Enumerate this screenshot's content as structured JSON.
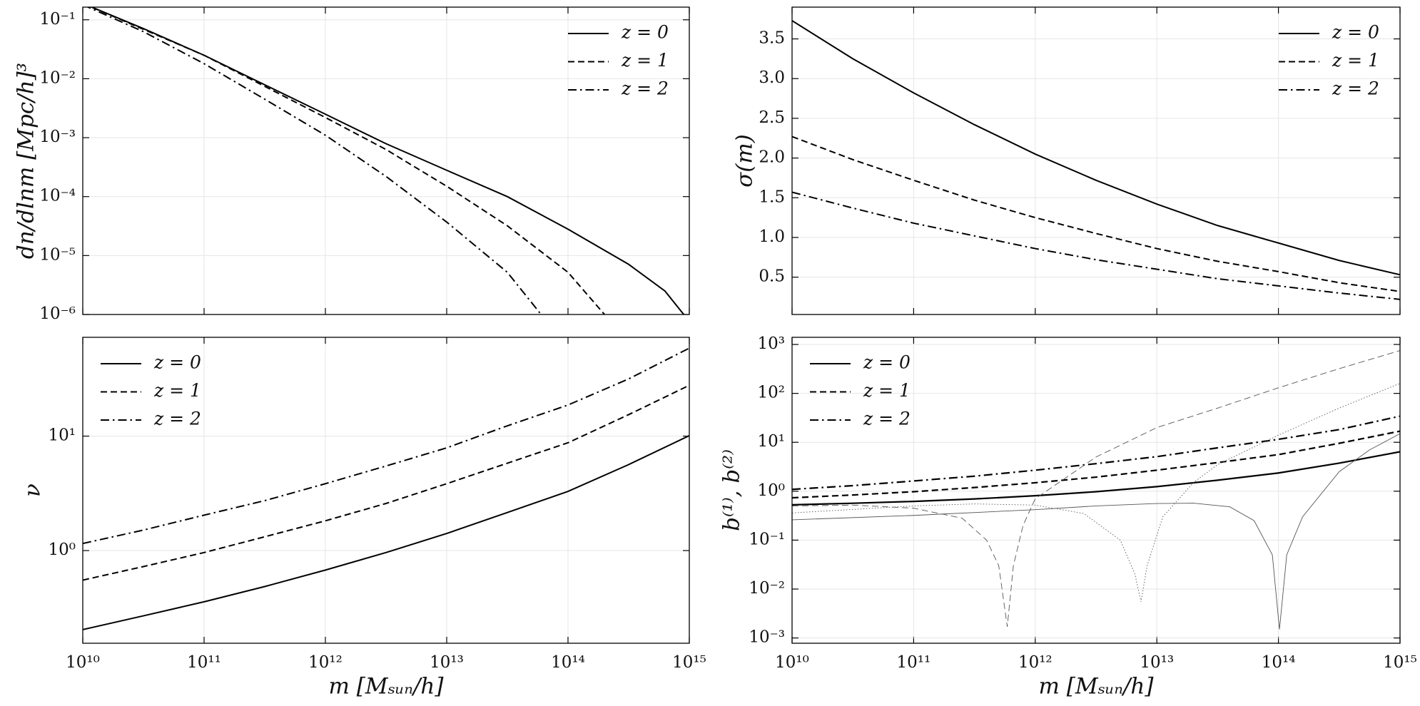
{
  "chart_data": [
    {
      "type": "line",
      "ylabel": "dn/dlnm   [Mpc/h]³",
      "xlog": true,
      "ylog": true,
      "xlim": [
        10000000000.0,
        1000000000000000.0
      ],
      "ylim": [
        1e-06,
        0.164
      ],
      "xticks": [
        10000000000.0,
        100000000000.0,
        1000000000000.0,
        10000000000000.0,
        100000000000000.0,
        1000000000000000.0
      ],
      "xtick_labels": false,
      "yticks": [
        {
          "value": 1e-06,
          "label": "10⁻⁶"
        },
        {
          "value": 1e-05,
          "label": "10⁻⁵"
        },
        {
          "value": 0.0001,
          "label": "10⁻⁴"
        },
        {
          "value": 0.001,
          "label": "10⁻³"
        },
        {
          "value": 0.01,
          "label": "10⁻²"
        },
        {
          "value": 0.1,
          "label": "10⁻¹"
        }
      ],
      "grid": true,
      "legend": "upper right",
      "series": [
        {
          "name": "z = 0",
          "color": "#000000",
          "dash": "solid",
          "linewidth": 2,
          "x": [
            10000000000.0,
            31600000000.0,
            100000000000.0,
            316000000000.0,
            1000000000000.0,
            3160000000000.0,
            10000000000000.0,
            31600000000000.0,
            100000000000000.0,
            316000000000000.0,
            630000000000000.0,
            900000000000000.0
          ],
          "values": [
            0.19,
            0.071,
            0.025,
            0.0079,
            0.0025,
            0.00079,
            0.00028,
            0.0001,
            2.8e-05,
            7.1e-06,
            2.5e-06,
            1e-06
          ]
        },
        {
          "name": "z = 1",
          "color": "#000000",
          "dash": "dashed",
          "linewidth": 2,
          "x": [
            10000000000.0,
            100000000000.0,
            1000000000000.0,
            3160000000000.0,
            10000000000000.0,
            31600000000000.0,
            100000000000000.0,
            200000000000000.0
          ],
          "values": [
            0.19,
            0.025,
            0.0022,
            0.00063,
            0.00015,
            3.2e-05,
            5.2e-06,
            1e-06
          ]
        },
        {
          "name": "z = 2",
          "color": "#000000",
          "dash": "dashdot",
          "linewidth": 2,
          "x": [
            10000000000.0,
            31600000000.0,
            100000000000.0,
            316000000000.0,
            1000000000000.0,
            3160000000000.0,
            10000000000000.0,
            31600000000000.0,
            60000000000000.0
          ],
          "values": [
            0.18,
            0.063,
            0.018,
            0.0045,
            0.0011,
            0.00022,
            3.7e-05,
            5.2e-06,
            1e-06
          ]
        }
      ]
    },
    {
      "type": "line",
      "ylabel": "σ(m)",
      "xlog": true,
      "ylog": false,
      "xlim": [
        10000000000.0,
        1000000000000000.0
      ],
      "ylim": [
        0.03,
        3.9
      ],
      "xticks": [
        10000000000.0,
        100000000000.0,
        1000000000000.0,
        10000000000000.0,
        100000000000000.0,
        1000000000000000.0
      ],
      "xtick_labels": false,
      "yticks": [
        0.5,
        {
          "value": 1,
          "label": "1.0"
        },
        1.5,
        {
          "value": 2,
          "label": "2.0"
        },
        2.5,
        {
          "value": 3,
          "label": "3.0"
        },
        3.5
      ],
      "grid": true,
      "legend": "upper right",
      "series": [
        {
          "name": "z = 0",
          "color": "#000000",
          "dash": "solid",
          "linewidth": 2,
          "x": [
            10000000000.0,
            31600000000.0,
            100000000000.0,
            316000000000.0,
            1000000000000.0,
            3160000000000.0,
            10000000000000.0,
            31600000000000.0,
            100000000000000.0,
            316000000000000.0,
            1000000000000000.0
          ],
          "values": [
            3.73,
            3.25,
            2.82,
            2.42,
            2.05,
            1.72,
            1.42,
            1.15,
            0.93,
            0.71,
            0.53
          ]
        },
        {
          "name": "z = 1",
          "color": "#000000",
          "dash": "dashed",
          "linewidth": 2,
          "x": [
            10000000000.0,
            31600000000.0,
            100000000000.0,
            316000000000.0,
            1000000000000.0,
            3160000000000.0,
            10000000000000.0,
            31600000000000.0,
            100000000000000.0,
            316000000000000.0,
            1000000000000000.0
          ],
          "values": [
            2.27,
            1.98,
            1.72,
            1.47,
            1.25,
            1.05,
            0.86,
            0.7,
            0.57,
            0.43,
            0.32
          ]
        },
        {
          "name": "z = 2",
          "color": "#000000",
          "dash": "dashdot",
          "linewidth": 2,
          "x": [
            10000000000.0,
            31600000000.0,
            100000000000.0,
            316000000000.0,
            1000000000000.0,
            3160000000000.0,
            10000000000000.0,
            31600000000000.0,
            100000000000000.0,
            316000000000000.0,
            1000000000000000.0
          ],
          "values": [
            1.57,
            1.37,
            1.18,
            1.02,
            0.86,
            0.72,
            0.6,
            0.48,
            0.39,
            0.3,
            0.22
          ]
        }
      ]
    },
    {
      "type": "line",
      "ylabel": "ν",
      "xlabel": "m   [Mₛᵤₙ/h]",
      "xlog": true,
      "ylog": true,
      "xlim": [
        10000000000.0,
        1000000000000000.0
      ],
      "ylim": [
        0.155,
        73
      ],
      "xticks": [
        {
          "value": 10000000000.0,
          "label": "10¹⁰"
        },
        {
          "value": 100000000000.0,
          "label": "10¹¹"
        },
        {
          "value": 1000000000000.0,
          "label": "10¹²"
        },
        {
          "value": 10000000000000.0,
          "label": "10¹³"
        },
        {
          "value": 100000000000000.0,
          "label": "10¹⁴"
        },
        {
          "value": 1000000000000000.0,
          "label": "10¹⁵"
        }
      ],
      "yticks": [
        {
          "value": 1,
          "label": "10⁰"
        },
        {
          "value": 10,
          "label": "10¹"
        }
      ],
      "grid": true,
      "legend": "upper left",
      "series": [
        {
          "name": "z = 0",
          "color": "#000000",
          "dash": "solid",
          "linewidth": 2,
          "x": [
            10000000000.0,
            31600000000.0,
            100000000000.0,
            316000000000.0,
            1000000000000.0,
            3160000000000.0,
            10000000000000.0,
            31600000000000.0,
            100000000000000.0,
            316000000000000.0,
            1000000000000000.0
          ],
          "values": [
            0.204,
            0.269,
            0.357,
            0.485,
            0.676,
            0.961,
            1.41,
            2.15,
            3.29,
            5.64,
            10.1
          ]
        },
        {
          "name": "z = 1",
          "color": "#000000",
          "dash": "dashed",
          "linewidth": 2,
          "x": [
            10000000000.0,
            31600000000.0,
            100000000000.0,
            316000000000.0,
            1000000000000.0,
            3160000000000.0,
            10000000000000.0,
            31600000000000.0,
            100000000000000.0,
            316000000000000.0,
            1000000000000000.0
          ],
          "values": [
            0.552,
            0.725,
            0.961,
            1.32,
            1.82,
            2.58,
            3.84,
            5.8,
            8.75,
            15.4,
            27.8
          ]
        },
        {
          "name": "z = 2",
          "color": "#000000",
          "dash": "dashdot",
          "linewidth": 2,
          "x": [
            10000000000.0,
            31600000000.0,
            100000000000.0,
            316000000000.0,
            1000000000000.0,
            3160000000000.0,
            10000000000000.0,
            31600000000000.0,
            100000000000000.0,
            316000000000000.0,
            1000000000000000.0
          ],
          "values": [
            1.153,
            1.51,
            2.04,
            2.73,
            3.84,
            5.48,
            7.9,
            12.3,
            18.7,
            31.6,
            58.7
          ]
        }
      ]
    },
    {
      "type": "line",
      "ylabel": "b⁽¹⁾, b⁽²⁾",
      "xlabel": "m   [Mₛᵤₙ/h]",
      "xlog": true,
      "ylog": true,
      "xlim": [
        10000000000.0,
        1000000000000000.0
      ],
      "ylim": [
        0.00078,
        1400
      ],
      "xticks": [
        {
          "value": 10000000000.0,
          "label": "10¹⁰"
        },
        {
          "value": 100000000000.0,
          "label": "10¹¹"
        },
        {
          "value": 1000000000000.0,
          "label": "10¹²"
        },
        {
          "value": 10000000000000.0,
          "label": "10¹³"
        },
        {
          "value": 100000000000000.0,
          "label": "10¹⁴"
        },
        {
          "value": 1000000000000000.0,
          "label": "10¹⁵"
        }
      ],
      "yticks": [
        {
          "value": 0.001,
          "label": "10⁻³"
        },
        {
          "value": 0.01,
          "label": "10⁻²"
        },
        {
          "value": 0.1,
          "label": "10⁻¹"
        },
        {
          "value": 1,
          "label": "10⁰"
        },
        {
          "value": 10,
          "label": "10¹"
        },
        {
          "value": 100,
          "label": "10²"
        },
        {
          "value": 1000,
          "label": "10³"
        }
      ],
      "grid": true,
      "legend": "upper left",
      "series": [
        {
          "name": "z = 0",
          "color": "#000000",
          "dash": "solid",
          "linewidth": 2.2,
          "x": [
            10000000000.0,
            31600000000.0,
            100000000000.0,
            316000000000.0,
            1000000000000.0,
            3160000000000.0,
            10000000000000.0,
            31600000000000.0,
            100000000000000.0,
            316000000000000.0,
            1000000000000000.0
          ],
          "values": [
            0.528,
            0.567,
            0.619,
            0.695,
            0.808,
            0.977,
            1.24,
            1.68,
            2.36,
            3.75,
            6.4
          ]
        },
        {
          "name": "z = 1",
          "color": "#000000",
          "dash": "dashed",
          "linewidth": 2.2,
          "x": [
            10000000000.0,
            31600000000.0,
            100000000000.0,
            316000000000.0,
            1000000000000.0,
            3160000000000.0,
            10000000000000.0,
            31600000000000.0,
            100000000000000.0,
            316000000000000.0,
            1000000000000000.0
          ],
          "values": [
            0.734,
            0.837,
            0.977,
            1.19,
            1.49,
            1.94,
            2.69,
            3.85,
            5.6,
            9.54,
            16.9
          ]
        },
        {
          "name": "z = 2",
          "color": "#000000",
          "dash": "dashdot",
          "linewidth": 2.2,
          "x": [
            10000000000.0,
            31600000000.0,
            100000000000.0,
            316000000000.0,
            1000000000000.0,
            3160000000000.0,
            10000000000000.0,
            31600000000000.0,
            100000000000000.0,
            316000000000000.0,
            1000000000000000.0
          ],
          "values": [
            1.09,
            1.3,
            1.62,
            2.03,
            2.69,
            3.66,
            5.09,
            7.7,
            11.5,
            18.2,
            34.2
          ]
        },
        {
          "color": "#555555",
          "dash": "solid",
          "linewidth": 0.9,
          "x": [
            10000000000.0,
            100000000000.0,
            1000000000000.0,
            3160000000000.0,
            10000000000000.0,
            20000000000000.0,
            39800000000000.0,
            63100000000000.0,
            89100000000000.0,
            102000000000000.0,
            117000000000000.0,
            158000000000000.0,
            316000000000000.0,
            562000000000000.0,
            1000000000000000.0
          ],
          "values": [
            0.26,
            0.32,
            0.42,
            0.5,
            0.56,
            0.57,
            0.48,
            0.25,
            0.05,
            0.0015,
            0.05,
            0.3,
            2.5,
            7,
            15
          ]
        },
        {
          "color": "#555555",
          "dash": "dotted",
          "linewidth": 0.9,
          "x": [
            10000000000.0,
            100000000000.0,
            316000000000.0,
            1000000000000.0,
            2510000000000.0,
            5010000000000.0,
            6610000000000.0,
            7410000000000.0,
            8320000000000.0,
            11200000000000.0,
            20000000000000.0,
            31600000000000.0,
            100000000000000.0,
            316000000000000.0,
            1000000000000000.0
          ],
          "values": [
            0.36,
            0.5,
            0.55,
            0.52,
            0.35,
            0.1,
            0.02,
            0.0055,
            0.03,
            0.3,
            1.5,
            3.5,
            14,
            50,
            160
          ]
        },
        {
          "color": "#555555",
          "dash": "dashed",
          "linewidth": 0.9,
          "x": [
            10000000000.0,
            31600000000.0,
            100000000000.0,
            251000000000.0,
            398000000000.0,
            501000000000.0,
            589000000000.0,
            661000000000.0,
            794000000000.0,
            1000000000000.0,
            3160000000000.0,
            10000000000000.0,
            31600000000000.0,
            100000000000000.0,
            316000000000000.0,
            1000000000000000.0
          ],
          "values": [
            0.5,
            0.52,
            0.45,
            0.28,
            0.1,
            0.03,
            0.0017,
            0.03,
            0.2,
            0.7,
            5,
            20,
            50,
            130,
            320,
            750
          ]
        }
      ]
    }
  ]
}
